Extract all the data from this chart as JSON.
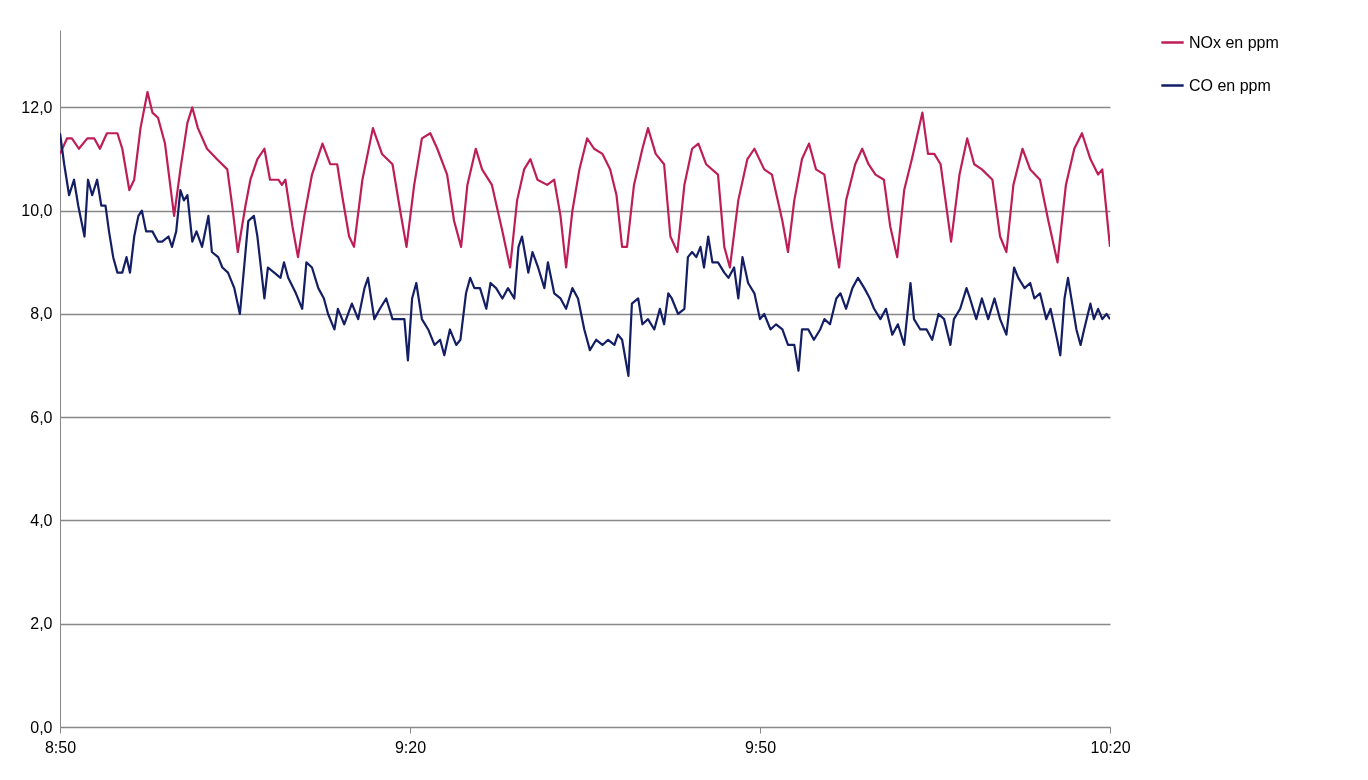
{
  "chart_data": {
    "type": "line",
    "xlim": [
      8.833,
      10.333
    ],
    "xticks": [
      {
        "value": 8.833,
        "label": "8:50"
      },
      {
        "value": 9.333,
        "label": "9:20"
      },
      {
        "value": 9.833,
        "label": "9:50"
      },
      {
        "value": 10.333,
        "label": "10:20"
      }
    ],
    "ylim": [
      0,
      13.5
    ],
    "yticks": [
      {
        "value": 0,
        "label": "0,0"
      },
      {
        "value": 2,
        "label": "2,0"
      },
      {
        "value": 4,
        "label": "4,0"
      },
      {
        "value": 6,
        "label": "6,0"
      },
      {
        "value": 8,
        "label": "8,0"
      },
      {
        "value": 10,
        "label": "10,0"
      },
      {
        "value": 12,
        "label": "12,0"
      }
    ],
    "grid": "y",
    "legend": "right",
    "series": [
      {
        "name": "NOx en ppm",
        "color": "#be1e57",
        "x": [
          8.833,
          8.843,
          8.85,
          8.86,
          8.872,
          8.882,
          8.89,
          8.9,
          8.915,
          8.922,
          8.932,
          8.939,
          8.948,
          8.958,
          8.965,
          8.973,
          8.983,
          8.996,
          9.005,
          9.015,
          9.022,
          9.03,
          9.043,
          9.057,
          9.072,
          9.079,
          9.087,
          9.098,
          9.105,
          9.115,
          9.125,
          9.133,
          9.145,
          9.15,
          9.155,
          9.165,
          9.173,
          9.182,
          9.193,
          9.208,
          9.219,
          9.229,
          9.236,
          9.246,
          9.253,
          9.265,
          9.28,
          9.293,
          9.308,
          9.319,
          9.328,
          9.339,
          9.35,
          9.362,
          9.372,
          9.386,
          9.396,
          9.406,
          9.415,
          9.427,
          9.436,
          9.45,
          9.465,
          9.476,
          9.486,
          9.496,
          9.505,
          9.515,
          9.529,
          9.539,
          9.548,
          9.556,
          9.565,
          9.575,
          9.586,
          9.596,
          9.608,
          9.619,
          9.628,
          9.636,
          9.643,
          9.653,
          9.665,
          9.673,
          9.684,
          9.696,
          9.705,
          9.715,
          9.725,
          9.736,
          9.745,
          9.756,
          9.773,
          9.782,
          9.79,
          9.802,
          9.815,
          9.825,
          9.839,
          9.85,
          9.865,
          9.873,
          9.882,
          9.893,
          9.903,
          9.913,
          9.925,
          9.936,
          9.946,
          9.956,
          9.969,
          9.979,
          9.988,
          9.998,
          10.01,
          10.019,
          10.029,
          10.039,
          10.05,
          10.065,
          10.073,
          10.082,
          10.091,
          10.101,
          10.106,
          10.118,
          10.129,
          10.139,
          10.15,
          10.165,
          10.176,
          10.185,
          10.195,
          10.208,
          10.219,
          10.233,
          10.245,
          10.258,
          10.27,
          10.282,
          10.293,
          10.305,
          10.316,
          10.322,
          10.333
        ],
        "values": [
          11.1,
          11.4,
          11.4,
          11.2,
          11.4,
          11.4,
          11.2,
          11.5,
          11.5,
          11.2,
          10.4,
          10.6,
          11.6,
          12.3,
          11.9,
          11.8,
          11.3,
          9.9,
          10.8,
          11.7,
          12.0,
          11.6,
          11.2,
          11.0,
          10.8,
          10.1,
          9.2,
          10.1,
          10.6,
          11.0,
          11.2,
          10.6,
          10.6,
          10.5,
          10.6,
          9.7,
          9.1,
          9.9,
          10.7,
          11.3,
          10.9,
          10.9,
          10.3,
          9.5,
          9.3,
          10.6,
          11.6,
          11.1,
          10.9,
          10.0,
          9.3,
          10.5,
          11.4,
          11.5,
          11.2,
          10.7,
          9.8,
          9.3,
          10.5,
          11.2,
          10.8,
          10.5,
          9.6,
          8.9,
          10.2,
          10.8,
          11.0,
          10.6,
          10.5,
          10.6,
          9.9,
          8.9,
          10.0,
          10.8,
          11.4,
          11.2,
          11.1,
          10.8,
          10.3,
          9.3,
          9.3,
          10.5,
          11.2,
          11.6,
          11.1,
          10.9,
          9.5,
          9.2,
          10.5,
          11.2,
          11.3,
          10.9,
          10.7,
          9.3,
          8.9,
          10.2,
          11.0,
          11.2,
          10.8,
          10.7,
          9.8,
          9.2,
          10.2,
          11.0,
          11.3,
          10.8,
          10.7,
          9.7,
          8.9,
          10.2,
          10.9,
          11.2,
          10.9,
          10.7,
          10.6,
          9.7,
          9.1,
          10.4,
          11.0,
          11.9,
          11.1,
          11.1,
          10.9,
          9.9,
          9.4,
          10.7,
          11.4,
          10.9,
          10.8,
          10.6,
          9.5,
          9.2,
          10.5,
          11.2,
          10.8,
          10.6,
          9.8,
          9.0,
          10.5,
          11.2,
          11.5,
          11.0,
          10.7,
          10.8,
          9.3
        ]
      },
      {
        "name": "CO en ppm",
        "color": "#141e64",
        "x": [
          8.833,
          8.839,
          8.846,
          8.853,
          8.859,
          8.868,
          8.873,
          8.879,
          8.886,
          8.892,
          8.898,
          8.903,
          8.909,
          8.915,
          8.922,
          8.928,
          8.933,
          8.939,
          8.945,
          8.95,
          8.956,
          8.965,
          8.973,
          8.979,
          8.988,
          8.993,
          8.999,
          9.005,
          9.01,
          9.015,
          9.022,
          9.028,
          9.036,
          9.045,
          9.05,
          9.059,
          9.065,
          9.073,
          9.082,
          9.09,
          9.096,
          9.102,
          9.11,
          9.115,
          9.125,
          9.13,
          9.139,
          9.148,
          9.153,
          9.159,
          9.17,
          9.179,
          9.185,
          9.193,
          9.202,
          9.21,
          9.216,
          9.225,
          9.23,
          9.239,
          9.25,
          9.259,
          9.268,
          9.273,
          9.282,
          9.29,
          9.299,
          9.308,
          9.316,
          9.325,
          9.33,
          9.336,
          9.342,
          9.35,
          9.359,
          9.368,
          9.376,
          9.382,
          9.39,
          9.399,
          9.405,
          9.413,
          9.419,
          9.425,
          9.433,
          9.442,
          9.448,
          9.456,
          9.465,
          9.473,
          9.482,
          9.488,
          9.493,
          9.502,
          9.508,
          9.516,
          9.525,
          9.53,
          9.539,
          9.548,
          9.556,
          9.565,
          9.573,
          9.582,
          9.59,
          9.599,
          9.608,
          9.616,
          9.625,
          9.63,
          9.636,
          9.645,
          9.65,
          9.659,
          9.665,
          9.673,
          9.682,
          9.69,
          9.696,
          9.702,
          9.707,
          9.716,
          9.725,
          9.73,
          9.736,
          9.742,
          9.748,
          9.753,
          9.759,
          9.765,
          9.773,
          9.782,
          9.788,
          9.796,
          9.802,
          9.808,
          9.816,
          9.825,
          9.833,
          9.839,
          9.848,
          9.856,
          9.865,
          9.873,
          9.882,
          9.888,
          9.893,
          9.902,
          9.91,
          9.919,
          9.925,
          9.933,
          9.942,
          9.948,
          9.956,
          9.965,
          9.973,
          9.982,
          9.99,
          9.996,
          10.005,
          10.013,
          10.022,
          10.03,
          10.039,
          10.048,
          10.053,
          10.062,
          10.071,
          10.079,
          10.088,
          10.096,
          10.105,
          10.11,
          10.119,
          10.128,
          10.133,
          10.142,
          10.15,
          10.159,
          10.168,
          10.176,
          10.185,
          10.196,
          10.202,
          10.211,
          10.219,
          10.225,
          10.233,
          10.242,
          10.248,
          10.256,
          10.262,
          10.268,
          10.273,
          10.279,
          10.285,
          10.291,
          10.296,
          10.305,
          10.31,
          10.316,
          10.322,
          10.328,
          10.333
        ],
        "values": [
          11.5,
          10.9,
          10.3,
          10.6,
          10.1,
          9.5,
          10.6,
          10.3,
          10.6,
          10.1,
          10.1,
          9.6,
          9.1,
          8.8,
          8.8,
          9.1,
          8.8,
          9.5,
          9.9,
          10.0,
          9.6,
          9.6,
          9.4,
          9.4,
          9.5,
          9.3,
          9.6,
          10.4,
          10.2,
          10.3,
          9.4,
          9.6,
          9.3,
          9.9,
          9.2,
          9.1,
          8.9,
          8.8,
          8.5,
          8.0,
          8.9,
          9.8,
          9.9,
          9.5,
          8.3,
          8.9,
          8.8,
          8.7,
          9.0,
          8.7,
          8.4,
          8.1,
          9.0,
          8.9,
          8.5,
          8.3,
          8.0,
          7.7,
          8.1,
          7.8,
          8.2,
          7.9,
          8.5,
          8.7,
          7.9,
          8.1,
          8.3,
          7.9,
          7.9,
          7.9,
          7.1,
          8.3,
          8.6,
          7.9,
          7.7,
          7.4,
          7.5,
          7.2,
          7.7,
          7.4,
          7.5,
          8.4,
          8.7,
          8.5,
          8.5,
          8.1,
          8.6,
          8.5,
          8.3,
          8.5,
          8.3,
          9.3,
          9.5,
          8.8,
          9.2,
          8.9,
          8.5,
          9.0,
          8.4,
          8.3,
          8.1,
          8.5,
          8.3,
          7.7,
          7.3,
          7.5,
          7.4,
          7.5,
          7.4,
          7.6,
          7.5,
          6.8,
          8.2,
          8.3,
          7.8,
          7.9,
          7.7,
          8.1,
          7.8,
          8.4,
          8.3,
          8.0,
          8.1,
          9.1,
          9.2,
          9.1,
          9.3,
          8.9,
          9.5,
          9.0,
          9.0,
          8.8,
          8.7,
          8.9,
          8.3,
          9.1,
          8.6,
          8.4,
          7.9,
          8.0,
          7.7,
          7.8,
          7.7,
          7.4,
          7.4,
          6.9,
          7.7,
          7.7,
          7.5,
          7.7,
          7.9,
          7.8,
          8.3,
          8.4,
          8.1,
          8.5,
          8.7,
          8.5,
          8.3,
          8.1,
          7.9,
          8.1,
          7.6,
          7.8,
          7.4,
          8.6,
          7.9,
          7.7,
          7.7,
          7.5,
          8.0,
          7.9,
          7.4,
          7.9,
          8.1,
          8.5,
          8.3,
          7.9,
          8.3,
          7.9,
          8.3,
          7.9,
          7.6,
          8.9,
          8.7,
          8.5,
          8.6,
          8.3,
          8.4,
          7.9,
          8.1,
          7.6,
          7.2,
          8.3,
          8.7,
          8.2,
          7.7,
          7.4,
          7.7,
          8.2,
          7.9,
          8.1,
          7.9,
          8.0,
          7.9
        ]
      }
    ]
  }
}
